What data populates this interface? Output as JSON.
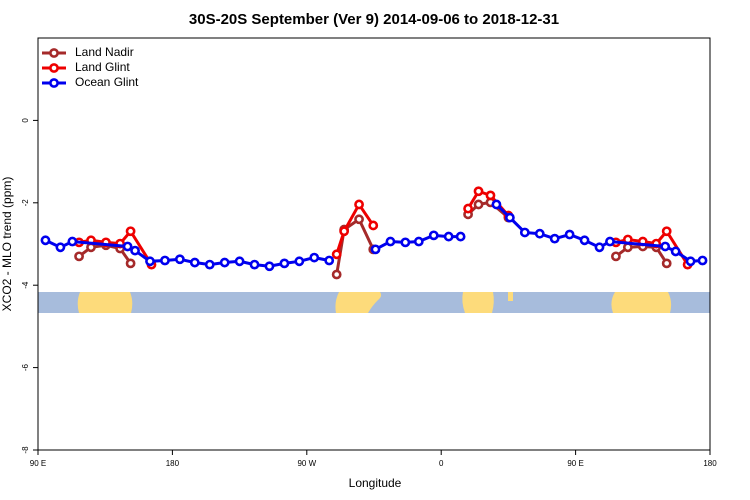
{
  "chart_data": {
    "type": "line",
    "title": "30S-20S September (Ver 9)   2014-09-06 to 2018-12-31",
    "x_label": "Longitude",
    "y_label": "XCO2 - MLO trend (ppm)",
    "xlim": [
      90,
      540
    ],
    "ylim": [
      -8,
      2
    ],
    "xticks": [
      {
        "value": 90,
        "label": "90 E"
      },
      {
        "value": 180,
        "label": "180"
      },
      {
        "value": 270,
        "label": "90 W"
      },
      {
        "value": 360,
        "label": "0"
      },
      {
        "value": 450,
        "label": "90 E"
      },
      {
        "value": 540,
        "label": "180"
      }
    ],
    "yticks": [
      0,
      -2,
      -4,
      -6,
      -8
    ],
    "legend": "top-left",
    "series": [
      {
        "name": "Land Nadir",
        "color": "#a52a2a",
        "x": [
          117.5,
          125.5,
          135.5,
          145,
          152,
          null,
          290,
          295,
          305,
          314.5,
          null,
          378,
          385,
          393,
          405,
          null,
          477,
          485,
          495,
          504,
          511
        ],
        "values": [
          -3.3,
          -3.08,
          -3.03,
          -3.11,
          -3.47,
          null,
          -3.74,
          -2.65,
          -2.4,
          -3.13,
          null,
          -2.28,
          -2.04,
          -1.99,
          -2.36,
          null,
          -3.3,
          -3.08,
          -3.06,
          -3.08,
          -3.47
        ]
      },
      {
        "name": "Land Glint",
        "color": "#ee0000",
        "x": [
          117.5,
          125.5,
          135.5,
          145,
          152,
          166,
          null,
          290,
          295,
          305,
          314.5,
          null,
          378,
          385,
          393,
          405,
          null,
          477,
          485,
          495,
          504,
          511,
          525
        ],
        "values": [
          -2.96,
          -2.91,
          -2.96,
          -2.99,
          -2.69,
          -3.5,
          null,
          -3.25,
          -2.69,
          -2.04,
          -2.55,
          null,
          -2.14,
          -1.72,
          -1.82,
          -2.31,
          null,
          -2.96,
          -2.89,
          -2.94,
          -2.99,
          -2.69,
          -3.5
        ]
      },
      {
        "name": "Ocean Glint",
        "color": "#0000ee",
        "x": [
          95,
          105,
          113,
          150,
          155,
          165,
          175,
          185,
          195,
          205,
          215,
          225,
          235,
          245,
          255,
          265,
          275,
          285,
          null,
          316,
          326,
          336,
          345,
          355,
          365,
          373,
          null,
          397,
          406,
          416,
          426,
          436,
          446,
          456,
          466,
          473,
          510,
          517,
          527,
          535
        ],
        "values": [
          -2.91,
          -3.08,
          -2.94,
          -3.06,
          -3.16,
          -3.42,
          -3.4,
          -3.37,
          -3.45,
          -3.5,
          -3.45,
          -3.42,
          -3.5,
          -3.54,
          -3.47,
          -3.42,
          -3.33,
          -3.4,
          null,
          -3.13,
          -2.94,
          -2.96,
          -2.94,
          -2.79,
          -2.82,
          -2.82,
          null,
          -2.04,
          -2.36,
          -2.72,
          -2.75,
          -2.87,
          -2.77,
          -2.91,
          -3.08,
          -2.94,
          -3.06,
          -3.18,
          -3.42,
          -3.4
        ]
      }
    ]
  }
}
